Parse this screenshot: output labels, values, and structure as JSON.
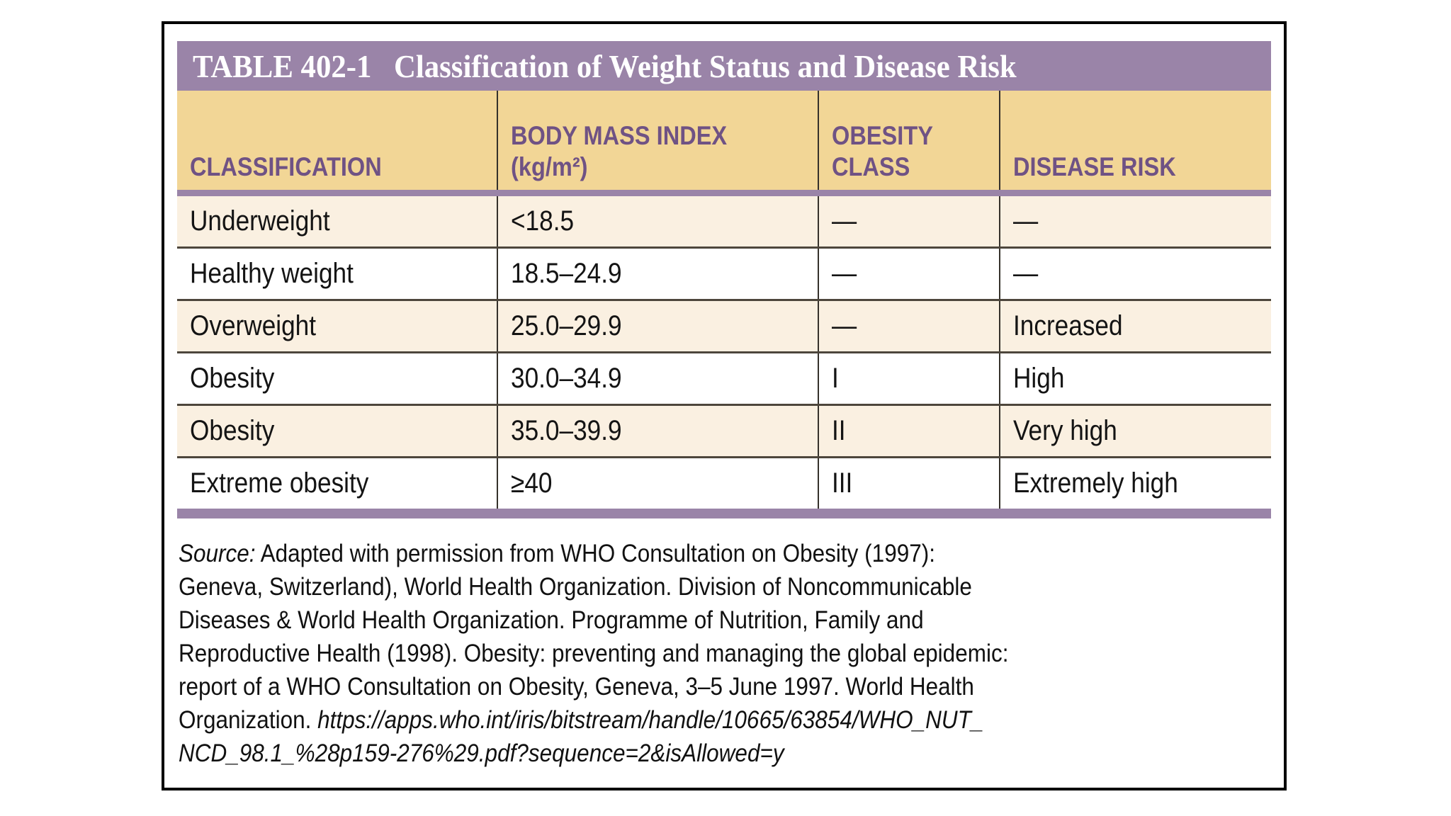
{
  "title": {
    "tag": "TABLE 402-1",
    "text": "Classification of Weight Status and Disease Risk"
  },
  "colors": {
    "accent_purple": "#9a84a8",
    "header_background": "#f2d696",
    "header_text": "#6f5284",
    "row_cream": "#faf0e1",
    "row_white": "#ffffff",
    "frame_border": "#000000"
  },
  "table": {
    "columns": [
      {
        "line1": "",
        "line2": "CLASSIFICATION"
      },
      {
        "line1": "BODY MASS INDEX",
        "line2": "(kg/m²)"
      },
      {
        "line1": "OBESITY",
        "line2": "CLASS"
      },
      {
        "line1": "",
        "line2": "DISEASE RISK"
      }
    ],
    "rows": [
      {
        "cells": [
          "Underweight",
          "<18.5",
          "—",
          "—"
        ]
      },
      {
        "cells": [
          "Healthy weight",
          "18.5–24.9",
          "—",
          "—"
        ]
      },
      {
        "cells": [
          "Overweight",
          "25.0–29.9",
          "—",
          "Increased"
        ]
      },
      {
        "cells": [
          "Obesity",
          "30.0–34.9",
          "I",
          "High"
        ]
      },
      {
        "cells": [
          "Obesity",
          "35.0–39.9",
          "II",
          "Very high"
        ]
      },
      {
        "cells": [
          "Extreme obesity",
          "≥40",
          "III",
          "Extremely high"
        ]
      }
    ]
  },
  "source": {
    "label": "Source:",
    "line1_rest": "Adapted with permission from WHO Consultation on Obesity (1997):",
    "line2": "Geneva, Switzerland), World Health Organization. Division of Noncommunicable",
    "line3": "Diseases & World Health Organization. Programme of Nutrition, Family and",
    "line4": "Reproductive Health (1998). Obesity: preventing and managing the global epidemic:",
    "line5": "report of a WHO Consultation on Obesity, Geneva, 3–5 June 1997. World Health",
    "line6_plain": "Organization. ",
    "line6_italic": "https://apps.who.int/iris/bitstream/handle/10665/63854/WHO_NUT_",
    "line7_italic": "NCD_98.1_%28p159-276%29.pdf?sequence=2&isAllowed=y"
  }
}
